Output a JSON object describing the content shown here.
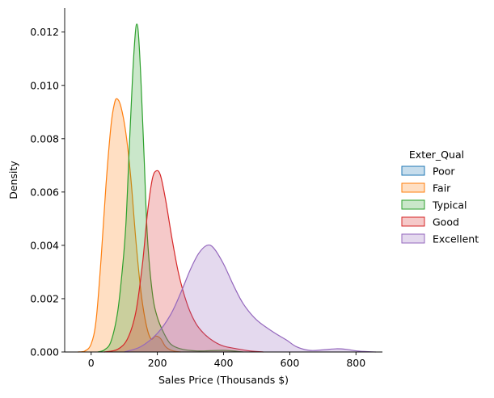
{
  "chart_data": {
    "type": "area",
    "subtype": "kde",
    "xlabel": "Sales Price (Thousands $)",
    "ylabel": "Density",
    "xlim": [
      -80,
      880
    ],
    "ylim": [
      0,
      0.0129
    ],
    "xticks": [
      0,
      200,
      400,
      600,
      800
    ],
    "xtick_labels": [
      "0",
      "200",
      "400",
      "600",
      "800"
    ],
    "yticks": [
      0,
      0.002,
      0.004,
      0.006,
      0.008,
      0.01,
      0.012
    ],
    "ytick_labels": [
      "0.000",
      "0.002",
      "0.004",
      "0.006",
      "0.008",
      "0.010",
      "0.012"
    ],
    "grid": false,
    "legend": {
      "title": "Exter_Qual",
      "placement": "right-outside",
      "entries": [
        "Poor",
        "Fair",
        "Typical",
        "Good",
        "Excellent"
      ]
    },
    "series": [
      {
        "name": "Poor",
        "color": "#1f77b4",
        "points": []
      },
      {
        "name": "Fair",
        "color": "#ff7f0e",
        "points": [
          [
            -40,
            0
          ],
          [
            -20,
            3e-05
          ],
          [
            0,
            0.0003
          ],
          [
            15,
            0.0012
          ],
          [
            30,
            0.0035
          ],
          [
            45,
            0.0063
          ],
          [
            60,
            0.0085
          ],
          [
            70,
            0.0093
          ],
          [
            78,
            0.0095
          ],
          [
            90,
            0.0092
          ],
          [
            105,
            0.0082
          ],
          [
            120,
            0.0065
          ],
          [
            135,
            0.0042
          ],
          [
            150,
            0.0023
          ],
          [
            165,
            0.0011
          ],
          [
            180,
            0.0005
          ],
          [
            195,
            0.0006
          ],
          [
            210,
            0.0005
          ],
          [
            225,
            0.0002
          ],
          [
            245,
            5e-05
          ],
          [
            270,
            0
          ]
        ]
      },
      {
        "name": "Typical",
        "color": "#2ca02c",
        "points": [
          [
            20,
            0
          ],
          [
            40,
            8e-05
          ],
          [
            60,
            0.0004
          ],
          [
            80,
            0.0015
          ],
          [
            95,
            0.0032
          ],
          [
            105,
            0.0048
          ],
          [
            115,
            0.0076
          ],
          [
            125,
            0.0103
          ],
          [
            133,
            0.0119
          ],
          [
            138,
            0.0123
          ],
          [
            143,
            0.0119
          ],
          [
            150,
            0.0103
          ],
          [
            160,
            0.0073
          ],
          [
            170,
            0.0043
          ],
          [
            185,
            0.0022
          ],
          [
            200,
            0.0013
          ],
          [
            220,
            0.0007
          ],
          [
            240,
            0.0003
          ],
          [
            270,
            0.00012
          ],
          [
            320,
            4e-05
          ],
          [
            400,
            6e-05
          ],
          [
            460,
            0
          ]
        ]
      },
      {
        "name": "Good",
        "color": "#d62728",
        "points": [
          [
            40,
            0
          ],
          [
            80,
            0.0001
          ],
          [
            110,
            0.0005
          ],
          [
            135,
            0.0015
          ],
          [
            155,
            0.0033
          ],
          [
            170,
            0.0052
          ],
          [
            185,
            0.0065
          ],
          [
            198,
            0.0068
          ],
          [
            210,
            0.0066
          ],
          [
            225,
            0.0057
          ],
          [
            245,
            0.0042
          ],
          [
            265,
            0.0029
          ],
          [
            290,
            0.0018
          ],
          [
            315,
            0.0011
          ],
          [
            340,
            0.0007
          ],
          [
            370,
            0.0004
          ],
          [
            400,
            0.00022
          ],
          [
            440,
            0.00012
          ],
          [
            480,
            4e-05
          ],
          [
            520,
            0
          ]
        ]
      },
      {
        "name": "Excellent",
        "color": "#9467bd",
        "points": [
          [
            100,
            0
          ],
          [
            150,
            0.0002
          ],
          [
            200,
            0.0007
          ],
          [
            240,
            0.0014
          ],
          [
            270,
            0.0022
          ],
          [
            300,
            0.0031
          ],
          [
            325,
            0.0037
          ],
          [
            350,
            0.004
          ],
          [
            370,
            0.0039
          ],
          [
            400,
            0.0033
          ],
          [
            430,
            0.0025
          ],
          [
            460,
            0.0018
          ],
          [
            500,
            0.0012
          ],
          [
            550,
            0.00075
          ],
          [
            590,
            0.00045
          ],
          [
            620,
            0.0002
          ],
          [
            660,
            6e-05
          ],
          [
            700,
            8e-05
          ],
          [
            740,
            0.00012
          ],
          [
            770,
            0.0001
          ],
          [
            810,
            3e-05
          ],
          [
            860,
            0
          ]
        ]
      }
    ]
  }
}
